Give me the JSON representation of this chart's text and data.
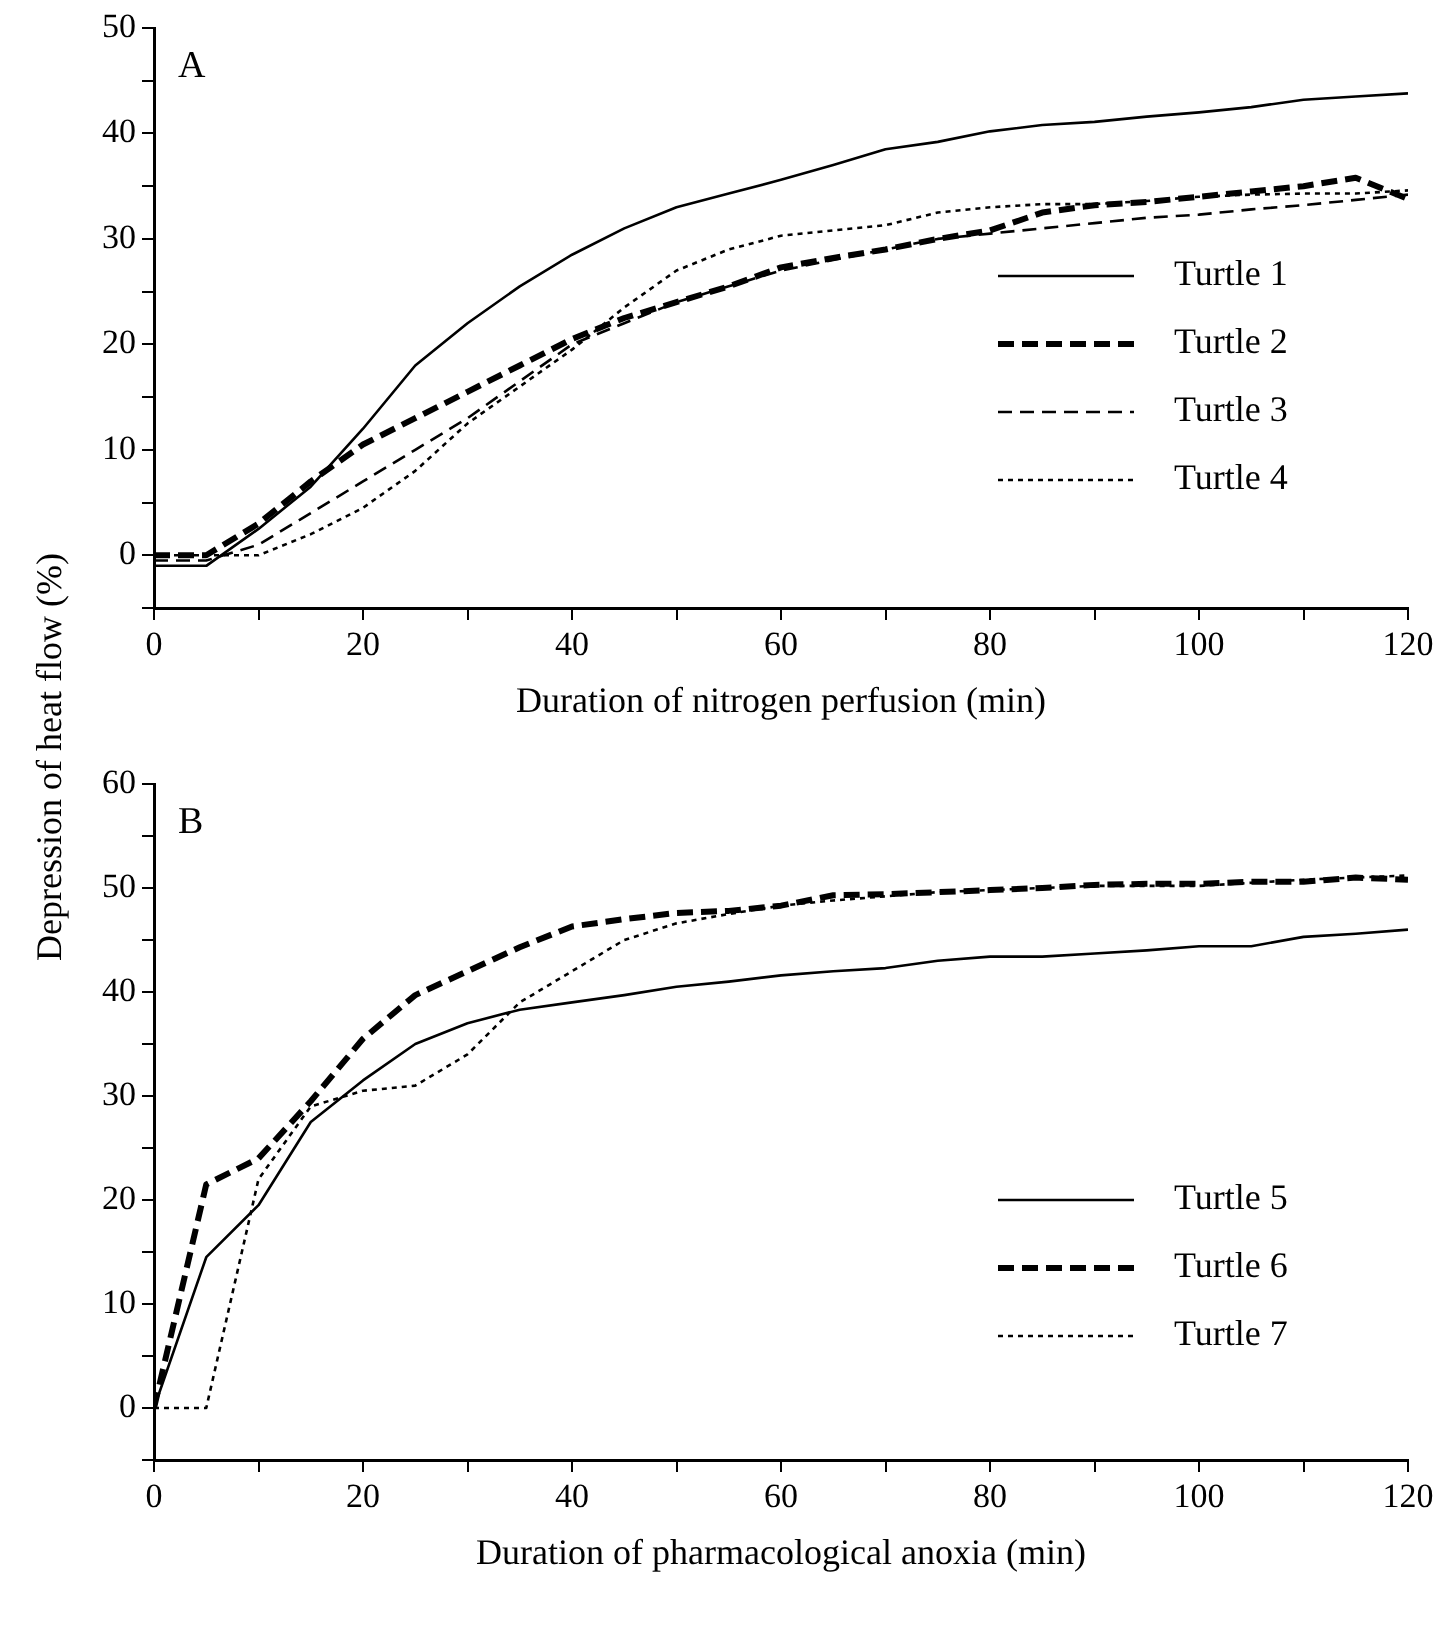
{
  "chart_data": [
    {
      "type": "line",
      "title": "A",
      "xlabel": "Duration of nitrogen perfusion (min)",
      "ylabel": "Depression of heat flow (%)",
      "x": [
        0,
        5,
        10,
        15,
        20,
        25,
        30,
        35,
        40,
        45,
        50,
        55,
        60,
        65,
        70,
        75,
        80,
        85,
        90,
        95,
        100,
        105,
        110,
        115,
        120
      ],
      "series": [
        {
          "name": "Turtle 1",
          "color": "#000000",
          "line_style": "solid",
          "values": [
            -1,
            -1,
            2.5,
            6.5,
            12,
            18,
            22,
            25.5,
            28.5,
            31,
            33,
            34.3,
            35.6,
            37,
            38.5,
            39.2,
            40.2,
            40.8,
            41.1,
            41.6,
            42,
            42.5,
            43.2,
            43.5,
            43.8
          ]
        },
        {
          "name": "Turtle 2",
          "color": "#000000",
          "line_style": "dashed",
          "values": [
            0,
            0,
            3,
            7,
            10.5,
            13,
            15.5,
            18,
            20.5,
            22.5,
            24,
            25.5,
            27.3,
            28.2,
            29,
            30,
            30.8,
            32.5,
            33.2,
            33.5,
            34,
            34.5,
            35,
            35.8,
            33.8
          ]
        },
        {
          "name": "Turtle 3",
          "color": "#000000",
          "line_style": "dashed",
          "values": [
            -0.5,
            -0.5,
            1,
            4,
            7,
            10,
            13,
            16.5,
            20,
            22,
            24,
            25.5,
            27,
            28,
            29,
            30,
            30.5,
            31,
            31.5,
            32,
            32.3,
            32.8,
            33.2,
            33.7,
            34.2
          ]
        },
        {
          "name": "Turtle 4",
          "color": "#000000",
          "line_style": "dotted",
          "values": [
            0,
            0,
            0,
            2,
            4.5,
            8,
            12.5,
            16,
            19.5,
            23.5,
            27,
            29,
            30.3,
            30.8,
            31.3,
            32.5,
            33,
            33.3,
            33.3,
            33.6,
            34,
            34.2,
            34.3,
            34.3,
            34.6
          ]
        }
      ],
      "xlim": [
        0,
        120
      ],
      "xticks": [
        0,
        {
          "value": 10,
          "label": null
        },
        20,
        {
          "value": 30,
          "label": null
        },
        40,
        {
          "value": 50,
          "label": null
        },
        60,
        {
          "value": 70,
          "label": null
        },
        80,
        {
          "value": 90,
          "label": null
        },
        100,
        {
          "value": 110,
          "label": null
        },
        120
      ],
      "ylim": [
        -5,
        50
      ],
      "yticks": [
        {
          "value": -5,
          "label": null
        },
        0,
        {
          "value": 5,
          "label": null
        },
        10,
        {
          "value": 15,
          "label": null
        },
        20,
        {
          "value": 25,
          "label": null
        },
        30,
        {
          "value": 35,
          "label": null
        },
        40,
        {
          "value": 45,
          "label": null
        },
        50
      ],
      "grid": false,
      "legend": "right"
    },
    {
      "type": "line",
      "title": "B",
      "xlabel": "Duration of pharmacological anoxia (min)",
      "x": [
        0,
        5,
        10,
        15,
        20,
        25,
        30,
        35,
        40,
        45,
        50,
        55,
        60,
        65,
        70,
        75,
        80,
        85,
        90,
        95,
        100,
        105,
        110,
        115,
        120
      ],
      "series": [
        {
          "name": "Turtle 5",
          "color": "#000000",
          "line_style": "solid",
          "values": [
            0,
            14.5,
            19.5,
            27.5,
            31.5,
            35,
            37,
            38.3,
            39,
            39.7,
            40.5,
            41,
            41.6,
            42,
            42.3,
            43,
            43.4,
            43.4,
            43.7,
            44,
            44.4,
            44.4,
            45.3,
            45.6,
            46
          ]
        },
        {
          "name": "Turtle 6",
          "color": "#000000",
          "line_style": "dashed",
          "values": [
            0,
            21.5,
            24,
            29.5,
            35.5,
            39.7,
            42,
            44.3,
            46.3,
            47,
            47.6,
            47.8,
            48.3,
            49.3,
            49.4,
            49.6,
            49.8,
            50,
            50.3,
            50.4,
            50.4,
            50.6,
            50.6,
            51,
            50.8
          ]
        },
        {
          "name": "Turtle 7",
          "color": "#000000",
          "line_style": "dotted",
          "values": [
            0,
            0,
            22,
            29,
            30.5,
            31,
            34,
            39,
            42,
            45,
            46.6,
            47.5,
            48.3,
            48.8,
            49.2,
            49.6,
            49.8,
            50,
            50.2,
            50.2,
            50.2,
            50.5,
            50.8,
            51,
            51.2
          ]
        }
      ],
      "xlim": [
        0,
        120
      ],
      "xticks": [
        0,
        {
          "value": 10,
          "label": null
        },
        20,
        {
          "value": 30,
          "label": null
        },
        40,
        {
          "value": 50,
          "label": null
        },
        60,
        {
          "value": 70,
          "label": null
        },
        80,
        {
          "value": 90,
          "label": null
        },
        100,
        {
          "value": 110,
          "label": null
        },
        120
      ],
      "ylim": [
        -5,
        60
      ],
      "yticks": [
        {
          "value": -5,
          "label": null
        },
        0,
        {
          "value": 5,
          "label": null
        },
        10,
        {
          "value": 15,
          "label": null
        },
        20,
        {
          "value": 25,
          "label": null
        },
        30,
        {
          "value": 35,
          "label": null
        },
        40,
        {
          "value": 45,
          "label": null
        },
        50,
        {
          "value": 55,
          "label": null
        },
        60
      ],
      "grid": false,
      "legend": "bottom right"
    }
  ]
}
